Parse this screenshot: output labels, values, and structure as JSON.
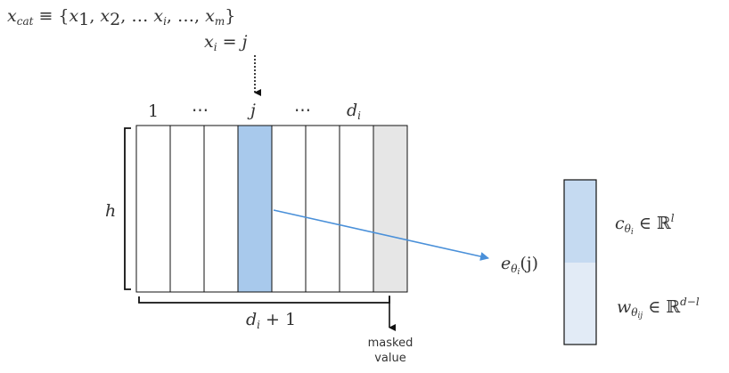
{
  "set_definition": {
    "x": "x",
    "x_sub": "cat",
    "equiv": " ≡ {",
    "items": [
      {
        "v": "x",
        "s": "1"
      },
      {
        "v": "x",
        "s": "2"
      },
      {
        "v": "x",
        "s": "i"
      },
      {
        "v": "x",
        "s": "m"
      }
    ],
    "sep1": ", ",
    "dots1": ", … ",
    "sep2": ", …, ",
    "close": "}"
  },
  "assignment": {
    "x": "x",
    "sub": "i",
    "eq": " = ",
    "val": "j"
  },
  "column_labels": {
    "first": "1",
    "dots_left": "⋯",
    "selected": "j",
    "dots_right": "⋯",
    "last_var": "d",
    "last_sub": "i"
  },
  "height_label": "h",
  "width_label": {
    "var": "d",
    "sub": "i",
    "rest": " + 1"
  },
  "masked_label": [
    "masked",
    "value"
  ],
  "embedding_label": {
    "e": "e",
    "theta": "θ",
    "theta_sub": "i",
    "arg": "(j)"
  },
  "c_label": {
    "c": "c",
    "theta": "θ",
    "theta_sub": "i",
    "in": " ∈ ℝ",
    "sup": "l"
  },
  "w_label": {
    "w": "w",
    "theta": "θ",
    "theta_sub": "ij",
    "in": " ∈ ℝ",
    "sup": "d−l"
  },
  "colors": {
    "selected_column": "#a8c9ec",
    "masked_column": "#e6e6e6",
    "arrow": "#4a90d9",
    "vector_top": "#c5daf1",
    "vector_bottom": "#e2ebf6",
    "stroke": "#111111"
  }
}
